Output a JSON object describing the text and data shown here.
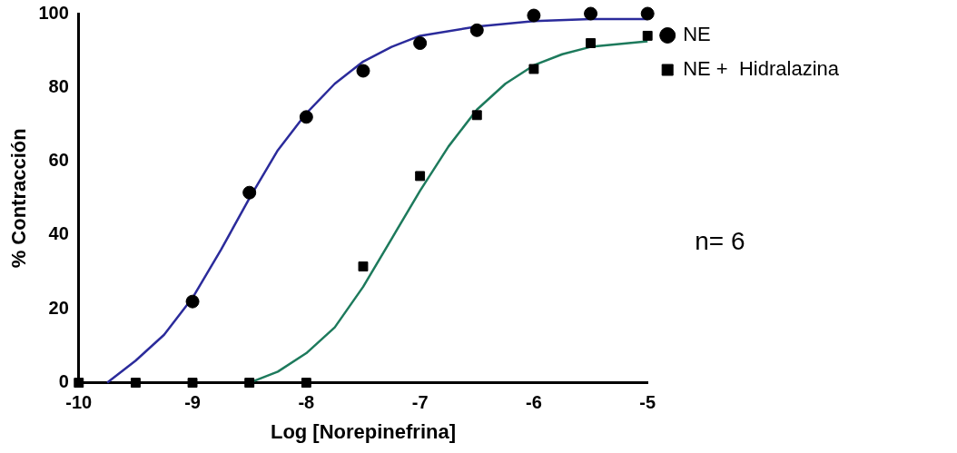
{
  "chart_data": {
    "type": "scatter",
    "xlabel": "Log [Norepinefrina]",
    "ylabel": "% Contracción",
    "xlim": [
      -10,
      -5
    ],
    "xticks": [
      -10,
      -9,
      -8,
      -7,
      -6,
      -5
    ],
    "ylim": [
      0,
      100
    ],
    "yticks": [
      0,
      20,
      40,
      60,
      80,
      100
    ],
    "grid": false,
    "legend": "top right",
    "annotations": [
      "n= 6"
    ],
    "series": [
      {
        "name": "NE",
        "marker": "circle",
        "color": "#000000",
        "x": [
          -9,
          -8.5,
          -8,
          -7.5,
          -7,
          -6.5,
          -6,
          -5.5,
          -5
        ],
        "values": [
          22,
          51.5,
          72,
          84.5,
          92,
          95.5,
          99.5,
          100,
          100
        ]
      },
      {
        "name": "NE +  Hidralazina",
        "marker": "square",
        "color": "#000000",
        "x": [
          -10,
          -9.5,
          -9,
          -8.5,
          -8,
          -7.5,
          -7,
          -6.5,
          -6,
          -5.5,
          -5
        ],
        "values": [
          0,
          0,
          0,
          0,
          0,
          31.5,
          56,
          72.5,
          85,
          92,
          94
        ]
      },
      {
        "type": "line",
        "marker": "none",
        "color": "#2b2b9b",
        "x": [
          -9.75,
          -9.5,
          -9.25,
          -9,
          -8.75,
          -8.5,
          -8.25,
          -8,
          -7.75,
          -7.5,
          -7.25,
          -7,
          -6.5,
          -6,
          -5.5,
          -5
        ],
        "values": [
          0,
          6,
          13,
          23,
          36,
          50,
          63,
          73,
          81,
          87,
          91,
          94,
          96.5,
          98,
          98.5,
          98.5
        ]
      },
      {
        "type": "line",
        "marker": "none",
        "color": "#1d7a5c",
        "x": [
          -8.5,
          -8.25,
          -8,
          -7.75,
          -7.5,
          -7.25,
          -7,
          -6.75,
          -6.5,
          -6.25,
          -6,
          -5.75,
          -5.5,
          -5
        ],
        "values": [
          0,
          3,
          8,
          15,
          26,
          39,
          52,
          64,
          74,
          81,
          86,
          89,
          91,
          92.5
        ]
      }
    ]
  }
}
